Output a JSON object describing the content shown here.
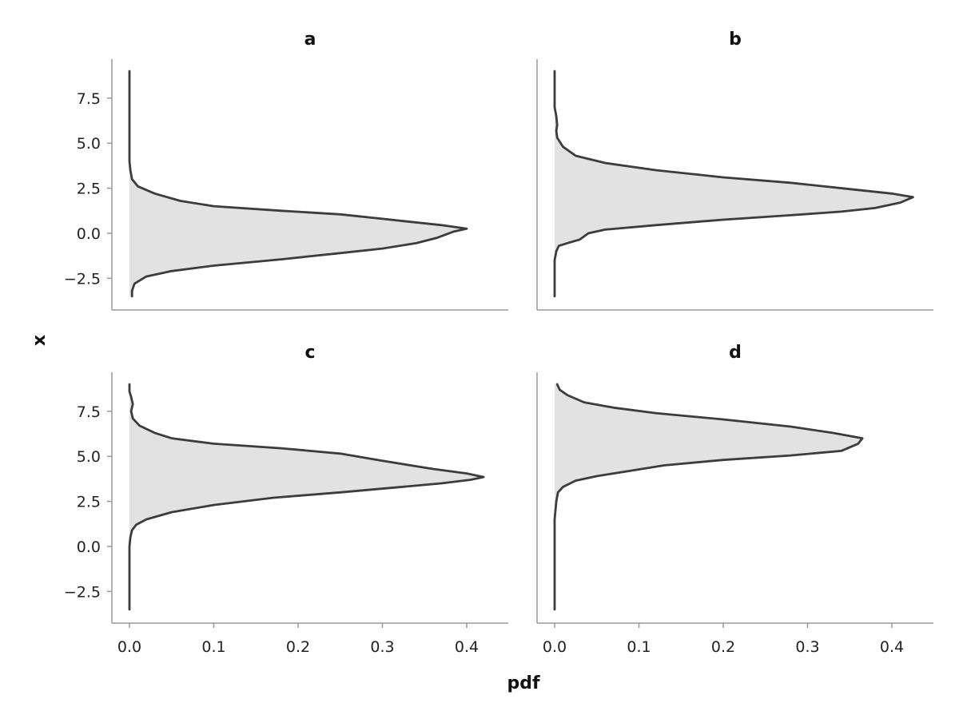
{
  "chart_data": {
    "type": "area",
    "xlabel": "pdf",
    "ylabel": "x",
    "xlim": [
      0,
      0.45
    ],
    "ylim": [
      -3.8,
      9.5
    ],
    "xticks": [
      0.0,
      0.1,
      0.2,
      0.3,
      0.4
    ],
    "xtick_labels": [
      "0.0",
      "0.1",
      "0.2",
      "0.3",
      "0.4"
    ],
    "yticks": [
      -2.5,
      0.0,
      2.5,
      5.0,
      7.5
    ],
    "ytick_labels": [
      "−2.5",
      "0.0",
      "2.5",
      "5.0",
      "7.5"
    ],
    "grid": false,
    "colors": {
      "line": "#3c3c3c",
      "fill": "#e2e2e2",
      "spine": "#9a9a9a"
    },
    "panels": [
      {
        "title": "a",
        "curve": [
          [
            0.003,
            -3.5
          ],
          [
            0.003,
            -3.2
          ],
          [
            0.006,
            -2.8
          ],
          [
            0.02,
            -2.4
          ],
          [
            0.05,
            -2.1
          ],
          [
            0.1,
            -1.8
          ],
          [
            0.18,
            -1.45
          ],
          [
            0.25,
            -1.1
          ],
          [
            0.3,
            -0.85
          ],
          [
            0.34,
            -0.55
          ],
          [
            0.365,
            -0.25
          ],
          [
            0.385,
            0.1
          ],
          [
            0.4,
            0.25
          ],
          [
            0.37,
            0.45
          ],
          [
            0.3,
            0.8
          ],
          [
            0.25,
            1.05
          ],
          [
            0.18,
            1.25
          ],
          [
            0.1,
            1.5
          ],
          [
            0.06,
            1.8
          ],
          [
            0.03,
            2.2
          ],
          [
            0.01,
            2.6
          ],
          [
            0.003,
            3.0
          ],
          [
            0.001,
            3.5
          ],
          [
            0.0,
            4.0
          ],
          [
            0.0,
            5.0
          ],
          [
            0.0,
            7.5
          ],
          [
            0.0,
            9.0
          ]
        ]
      },
      {
        "title": "b",
        "curve": [
          [
            0.0,
            -3.5
          ],
          [
            0.0,
            -2.5
          ],
          [
            0.0,
            -1.5
          ],
          [
            0.002,
            -1.0
          ],
          [
            0.005,
            -0.7
          ],
          [
            0.015,
            -0.55
          ],
          [
            0.03,
            -0.35
          ],
          [
            0.04,
            0.0
          ],
          [
            0.06,
            0.2
          ],
          [
            0.12,
            0.45
          ],
          [
            0.2,
            0.75
          ],
          [
            0.28,
            1.0
          ],
          [
            0.34,
            1.2
          ],
          [
            0.38,
            1.4
          ],
          [
            0.41,
            1.7
          ],
          [
            0.425,
            2.0
          ],
          [
            0.4,
            2.2
          ],
          [
            0.35,
            2.45
          ],
          [
            0.28,
            2.8
          ],
          [
            0.2,
            3.1
          ],
          [
            0.12,
            3.5
          ],
          [
            0.06,
            3.9
          ],
          [
            0.025,
            4.3
          ],
          [
            0.01,
            4.8
          ],
          [
            0.003,
            5.3
          ],
          [
            0.002,
            5.7
          ],
          [
            0.003,
            6.0
          ],
          [
            0.002,
            6.5
          ],
          [
            0.0,
            7.0
          ],
          [
            0.0,
            9.0
          ]
        ]
      },
      {
        "title": "c",
        "curve": [
          [
            0.0,
            -3.5
          ],
          [
            0.0,
            -2.0
          ],
          [
            0.0,
            0.0
          ],
          [
            0.001,
            0.5
          ],
          [
            0.003,
            0.9
          ],
          [
            0.008,
            1.2
          ],
          [
            0.02,
            1.5
          ],
          [
            0.05,
            1.9
          ],
          [
            0.1,
            2.3
          ],
          [
            0.17,
            2.7
          ],
          [
            0.25,
            3.0
          ],
          [
            0.31,
            3.25
          ],
          [
            0.37,
            3.5
          ],
          [
            0.405,
            3.7
          ],
          [
            0.42,
            3.85
          ],
          [
            0.4,
            4.05
          ],
          [
            0.36,
            4.3
          ],
          [
            0.3,
            4.75
          ],
          [
            0.25,
            5.15
          ],
          [
            0.18,
            5.45
          ],
          [
            0.1,
            5.7
          ],
          [
            0.05,
            6.0
          ],
          [
            0.03,
            6.3
          ],
          [
            0.012,
            6.7
          ],
          [
            0.004,
            7.1
          ],
          [
            0.002,
            7.5
          ],
          [
            0.004,
            7.9
          ],
          [
            0.002,
            8.3
          ],
          [
            0.0,
            8.6
          ],
          [
            0.0,
            9.0
          ]
        ]
      },
      {
        "title": "d",
        "curve": [
          [
            0.0,
            -3.5
          ],
          [
            0.0,
            0.0
          ],
          [
            0.0,
            1.5
          ],
          [
            0.002,
            2.5
          ],
          [
            0.004,
            3.0
          ],
          [
            0.01,
            3.3
          ],
          [
            0.025,
            3.65
          ],
          [
            0.05,
            3.9
          ],
          [
            0.09,
            4.2
          ],
          [
            0.13,
            4.5
          ],
          [
            0.2,
            4.8
          ],
          [
            0.28,
            5.05
          ],
          [
            0.34,
            5.3
          ],
          [
            0.36,
            5.7
          ],
          [
            0.365,
            6.0
          ],
          [
            0.33,
            6.3
          ],
          [
            0.28,
            6.65
          ],
          [
            0.2,
            7.05
          ],
          [
            0.12,
            7.4
          ],
          [
            0.07,
            7.7
          ],
          [
            0.035,
            8.0
          ],
          [
            0.015,
            8.4
          ],
          [
            0.006,
            8.7
          ],
          [
            0.003,
            9.0
          ]
        ]
      }
    ]
  }
}
